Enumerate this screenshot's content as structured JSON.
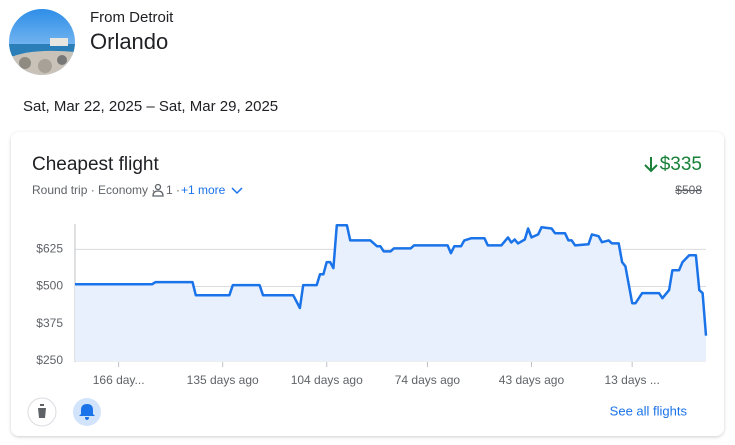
{
  "header": {
    "origin": "From Detroit",
    "destination": "Orlando"
  },
  "dates": "Sat, Mar 22, 2025 – Sat, Mar 29, 2025",
  "card": {
    "title": "Cheapest flight",
    "price": "$335",
    "previous_price": "$508",
    "trip": "Round trip · Economy ·",
    "passengers": "1 ·",
    "more": "+1 more",
    "see_all": "See all flights"
  },
  "chart_data": {
    "type": "line",
    "color": "#1a73e8",
    "fill": "#e8f0fe",
    "x": [
      179,
      156,
      155,
      144,
      143,
      133,
      132,
      124,
      123,
      114,
      112,
      111,
      107,
      106,
      105,
      104,
      103,
      102,
      101,
      98,
      97,
      91,
      89,
      88,
      87,
      85,
      84,
      79,
      78,
      68,
      67,
      66,
      64,
      63,
      61,
      57,
      56,
      52,
      50,
      49,
      48,
      47,
      45,
      44,
      43,
      41,
      40,
      37,
      36,
      33,
      32,
      31,
      30,
      26,
      25,
      23,
      22,
      20,
      19,
      17,
      16,
      15,
      13,
      12,
      10,
      5,
      4,
      2,
      1,
      -1,
      -2,
      -4,
      -6,
      -7,
      -8,
      -9
    ],
    "values": [
      508,
      508,
      515,
      515,
      471,
      471,
      505,
      505,
      471,
      471,
      428,
      505,
      505,
      541,
      541,
      582,
      582,
      562,
      706,
      706,
      655,
      655,
      635,
      635,
      618,
      618,
      628,
      628,
      638,
      638,
      612,
      635,
      635,
      655,
      662,
      662,
      638,
      638,
      665,
      648,
      658,
      645,
      658,
      695,
      665,
      675,
      699,
      695,
      679,
      679,
      655,
      655,
      638,
      642,
      675,
      669,
      649,
      655,
      645,
      645,
      582,
      568,
      444,
      444,
      478,
      478,
      461,
      488,
      555,
      555,
      582,
      605,
      605,
      488,
      478,
      335
    ],
    "xlim": [
      179,
      -9
    ],
    "ylim": [
      250,
      710
    ],
    "xticks": [
      {
        "value": 166,
        "label": "166 day..."
      },
      {
        "value": 135,
        "label": "135 days ago"
      },
      {
        "value": 104,
        "label": "104 days ago"
      },
      {
        "value": 74,
        "label": "74 days ago"
      },
      {
        "value": 43,
        "label": "43 days ago"
      },
      {
        "value": 13,
        "label": "13 days ..."
      }
    ],
    "yticks": [
      {
        "value": 250,
        "label": "$250"
      },
      {
        "value": 375,
        "label": "$375"
      },
      {
        "value": 500,
        "label": "$500"
      },
      {
        "value": 625,
        "label": "$625"
      }
    ],
    "grid": true
  }
}
